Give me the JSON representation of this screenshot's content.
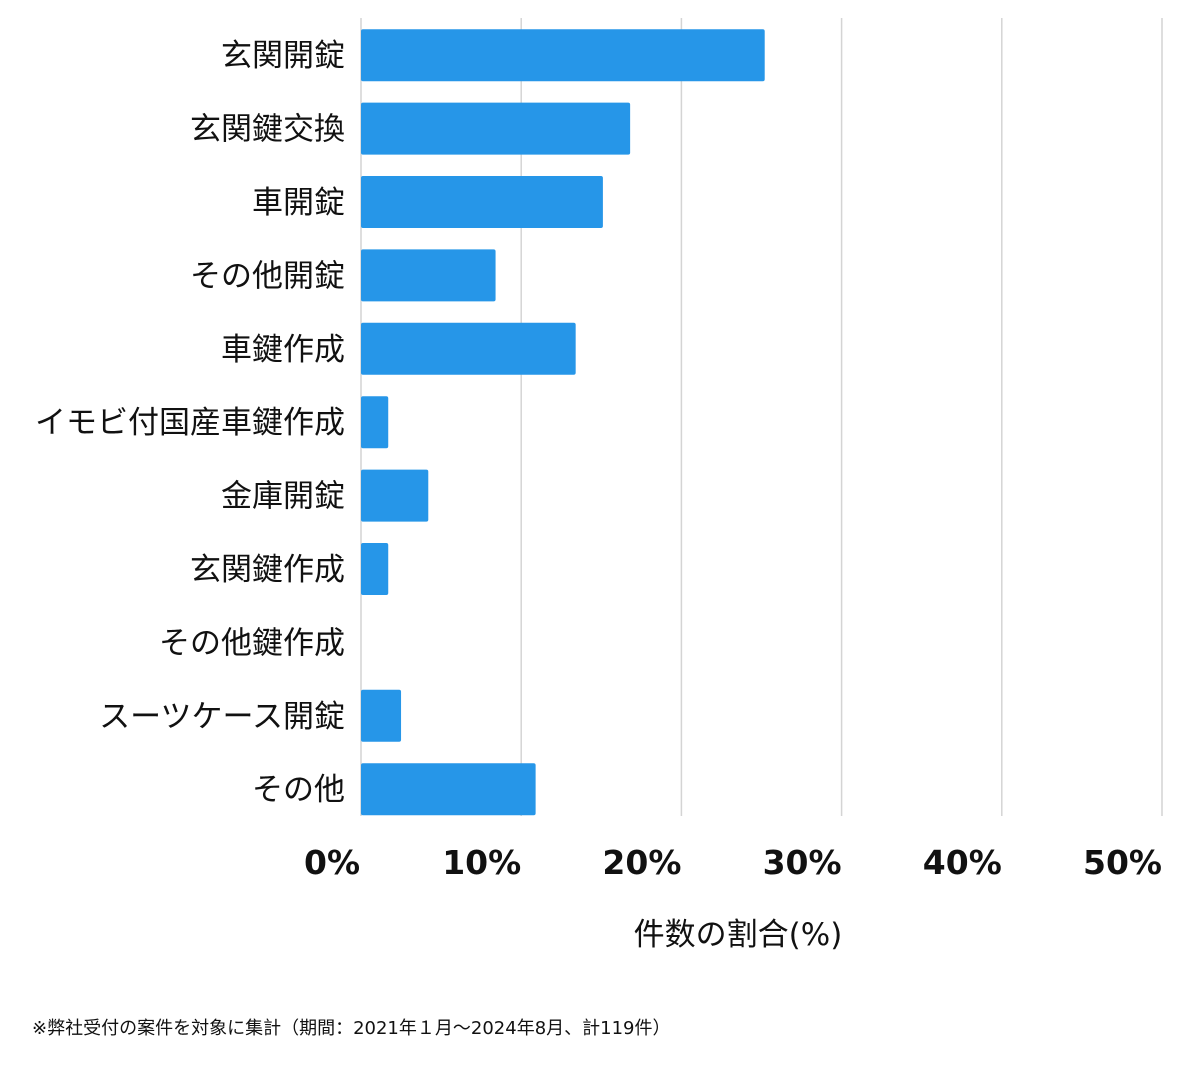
{
  "chart_data": {
    "type": "bar",
    "orientation": "horizontal",
    "categories": [
      "玄関開錠",
      "玄関鍵交換",
      "車開錠",
      "その他開錠",
      "車鍵作成",
      "イモビ付国産車鍵作成",
      "金庫開錠",
      "玄関鍵作成",
      "その他鍵作成",
      "スーツケース開錠",
      "その他"
    ],
    "values": [
      25.2,
      16.8,
      15.1,
      8.4,
      13.4,
      1.7,
      4.2,
      1.7,
      0,
      2.5,
      10.9
    ],
    "xlabel": "件数の割合(%)",
    "ylabel": "",
    "xlim": [
      0,
      50
    ],
    "ticks": [
      0,
      10,
      20,
      30,
      40,
      50
    ],
    "tick_labels": [
      "0%",
      "10%",
      "20%",
      "30%",
      "40%",
      "50%"
    ],
    "bar_color": "#2696e8",
    "grid": true
  },
  "footnote": "※弊社受付の案件を対象に集計（期間：2021年１月〜2024年8月、計119件）"
}
